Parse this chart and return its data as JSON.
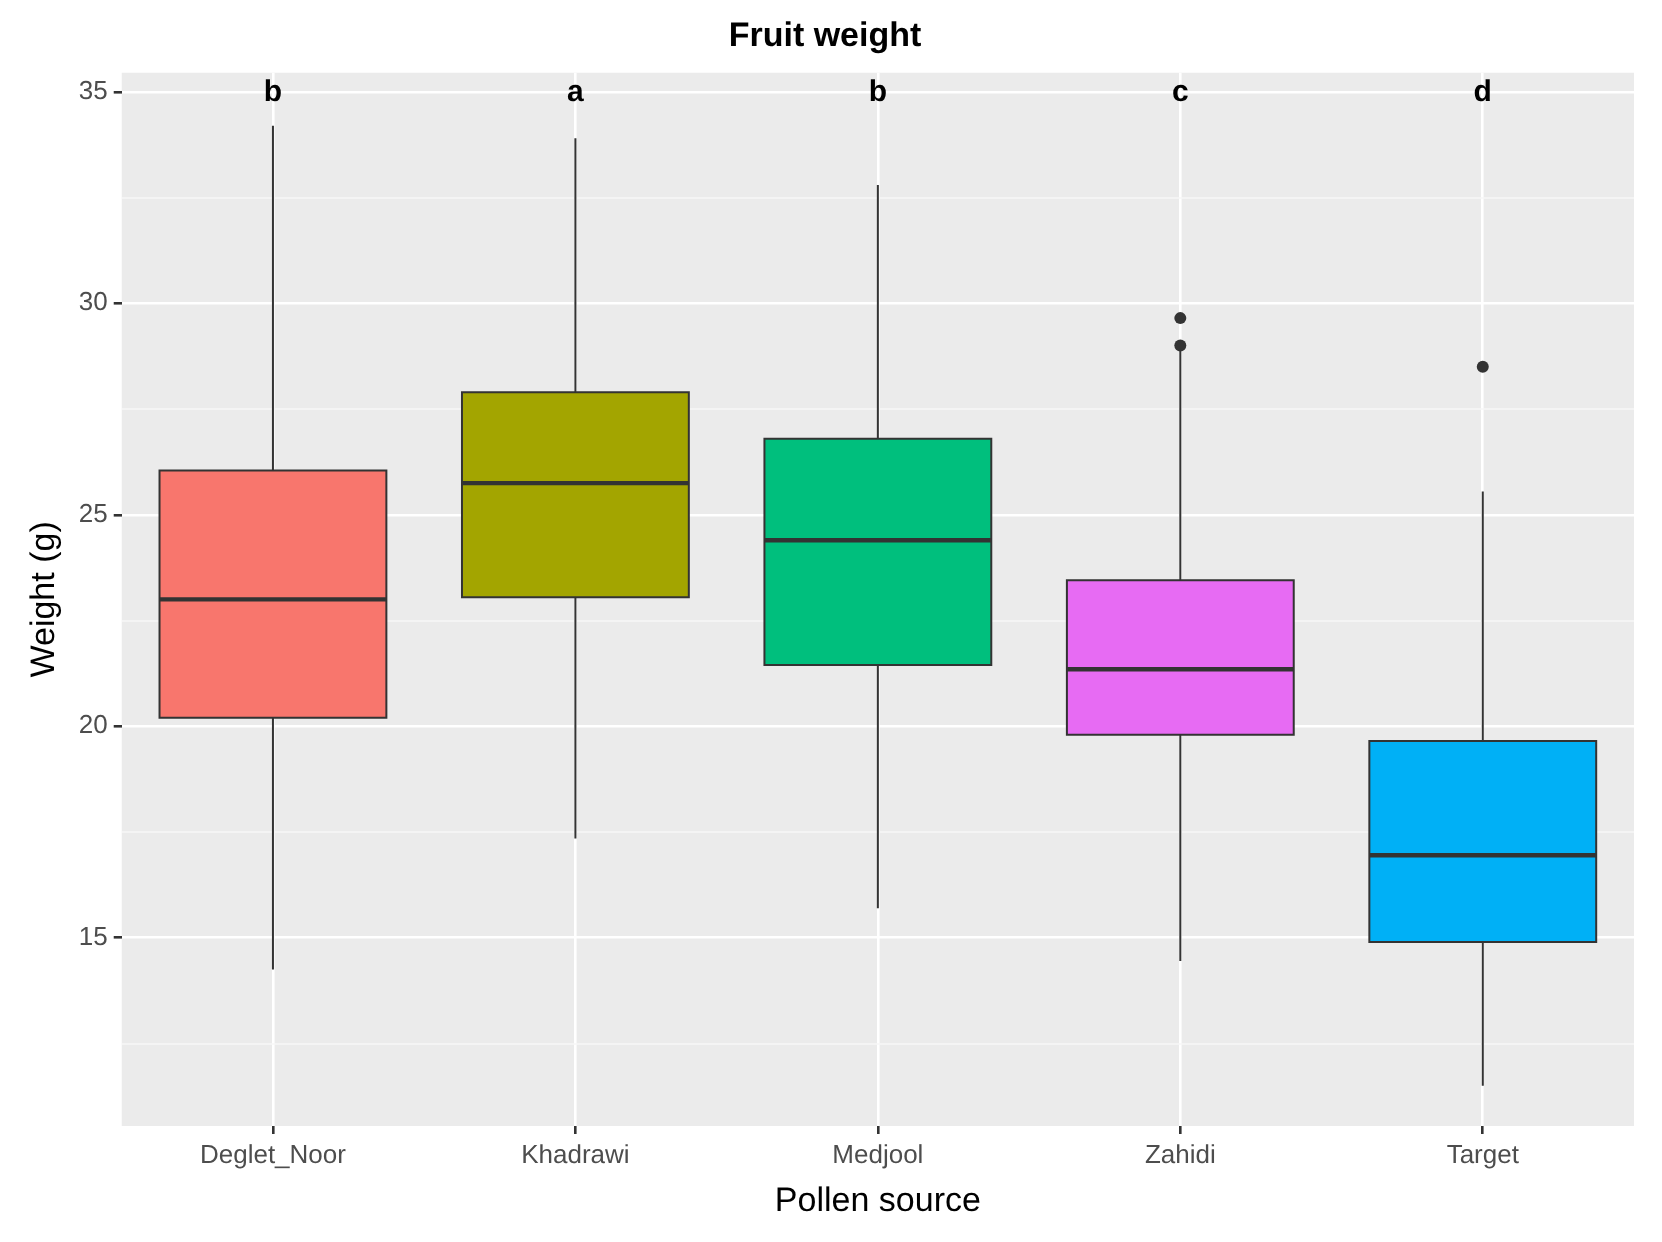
{
  "chart_data": {
    "type": "box",
    "title": "Fruit weight",
    "xlabel": "Pollen source",
    "ylabel": "Weight (g)",
    "categories": [
      "Deglet_Noor",
      "Khadrawi",
      "Medjool",
      "Zahidi",
      "Target"
    ],
    "colors": [
      "#f8766d",
      "#a3a500",
      "#00bf7d",
      "#e76bf3",
      "#00b0f6"
    ],
    "boxes": [
      {
        "low": 14.25,
        "q1": 20.2,
        "median": 23.0,
        "q3": 26.05,
        "high": 34.2
      },
      {
        "low": 17.35,
        "q1": 23.05,
        "median": 25.75,
        "q3": 27.9,
        "high": 33.9
      },
      {
        "low": 15.7,
        "q1": 21.45,
        "median": 24.4,
        "q3": 26.8,
        "high": 32.8
      },
      {
        "low": 14.45,
        "q1": 19.8,
        "median": 21.35,
        "q3": 23.45,
        "high": 28.9,
        "outliers": [
          29.65,
          29.0
        ]
      },
      {
        "low": 11.5,
        "q1": 14.9,
        "median": 16.95,
        "q3": 19.65,
        "high": 25.55,
        "outliers": [
          28.5
        ]
      }
    ],
    "ylim": [
      10.55,
      35.45
    ],
    "yticks": [
      {
        "value": 12.5,
        "label": null
      },
      15,
      {
        "value": 17.5,
        "label": null
      },
      20,
      {
        "value": 22.5,
        "label": null
      },
      25,
      {
        "value": 27.5,
        "label": null
      },
      30,
      {
        "value": 32.5,
        "label": null
      },
      35
    ],
    "grid": true,
    "annotations": [
      "b",
      "a",
      "b",
      "c",
      "d"
    ]
  }
}
